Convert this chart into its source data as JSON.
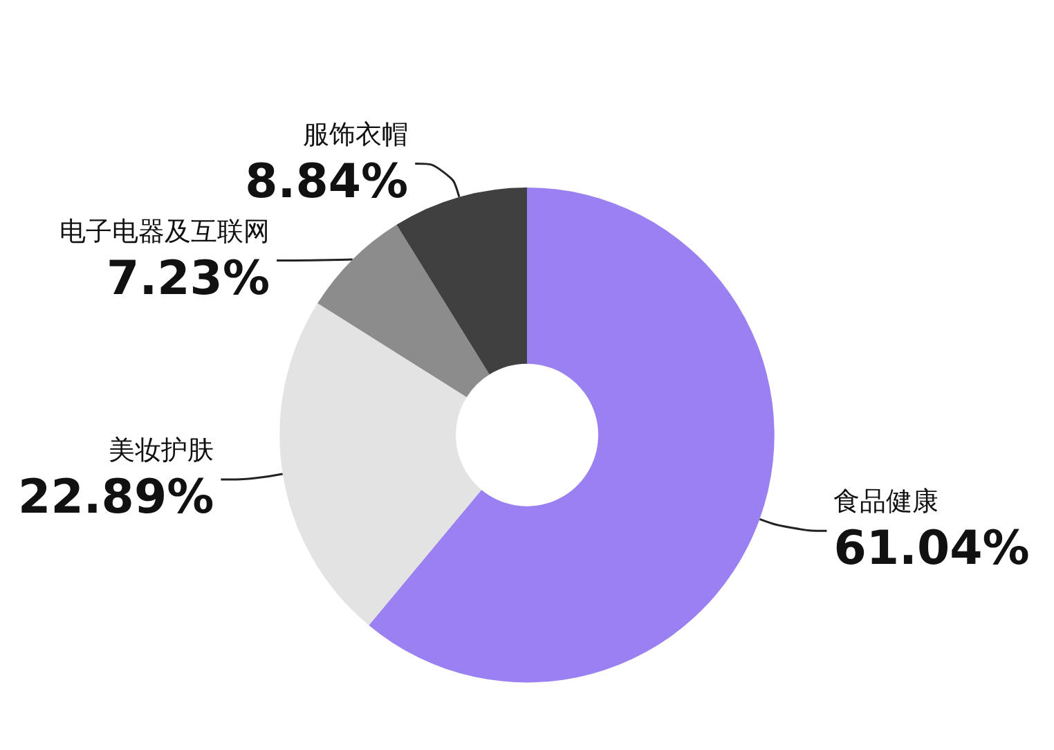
{
  "chart_data": {
    "type": "donut",
    "categories": [
      "食品健康",
      "美妆护肤",
      "电子电器及互联网",
      "服饰衣帽"
    ],
    "values": [
      61.04,
      22.89,
      7.23,
      8.84
    ],
    "value_labels": [
      "61.04%",
      "22.89%",
      "7.23%",
      "8.84%"
    ],
    "colors": [
      "#9b80f2",
      "#e3e3e3",
      "#8c8c8c",
      "#404040"
    ],
    "legend": false
  }
}
